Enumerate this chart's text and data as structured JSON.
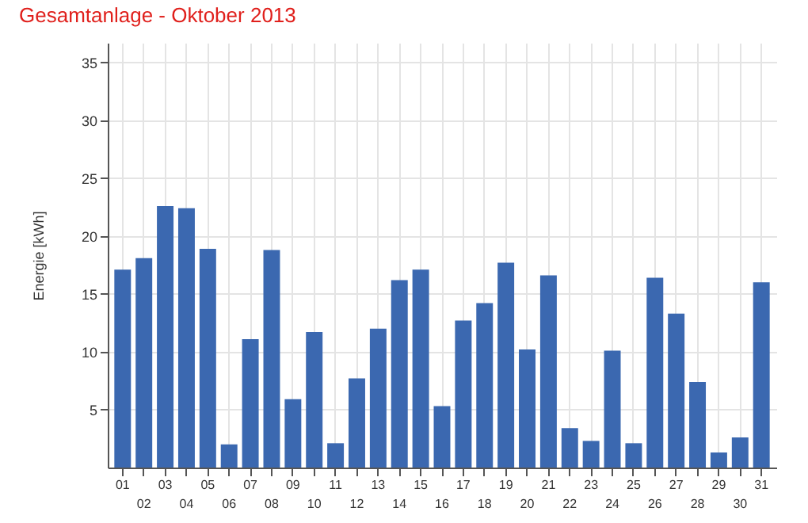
{
  "chart_data": {
    "type": "bar",
    "title": "Gesamtanlage - Oktober 2013",
    "ylabel": "Energie [kWh]",
    "categories": [
      "01",
      "02",
      "03",
      "04",
      "05",
      "06",
      "07",
      "08",
      "09",
      "10",
      "11",
      "12",
      "13",
      "14",
      "15",
      "16",
      "17",
      "18",
      "19",
      "20",
      "21",
      "22",
      "23",
      "24",
      "25",
      "26",
      "27",
      "28",
      "29",
      "30",
      "31"
    ],
    "values": [
      17.1,
      18.1,
      22.6,
      22.4,
      18.9,
      2.0,
      11.1,
      18.8,
      5.9,
      11.7,
      2.1,
      7.7,
      12.0,
      16.2,
      17.1,
      5.3,
      12.7,
      14.2,
      17.7,
      10.2,
      16.6,
      3.4,
      2.3,
      10.1,
      2.1,
      16.4,
      13.3,
      7.4,
      1.3,
      2.6,
      16.0
    ],
    "color": "#3b68b0",
    "ylim": [
      0,
      36.7
    ],
    "yticks": [
      5,
      10,
      15,
      20,
      25,
      30,
      35
    ],
    "grid": true
  }
}
